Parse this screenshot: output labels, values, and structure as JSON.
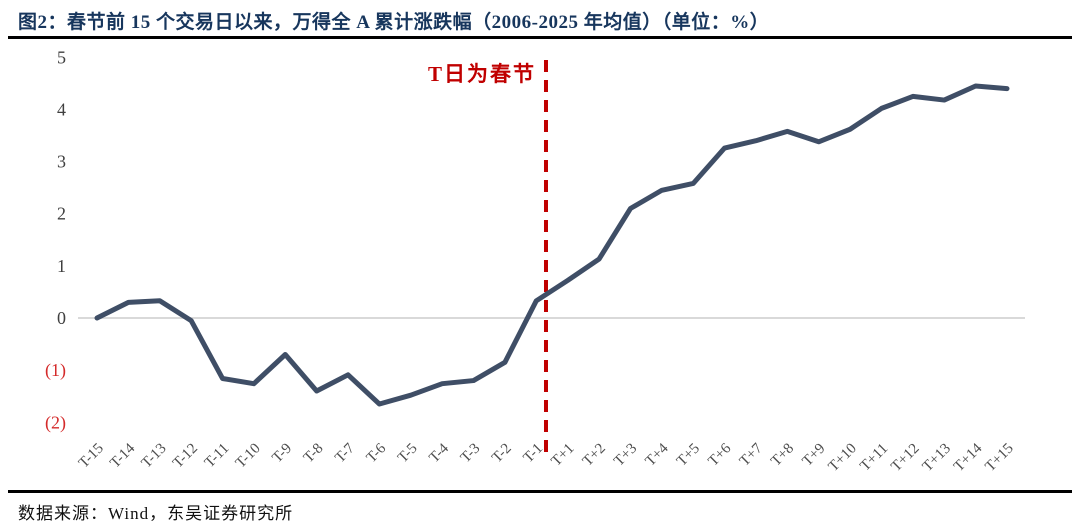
{
  "title": "图2：春节前 15 个交易日以来，万得全 A 累计涨跌幅（2006-2025 年均值）（单位：%）",
  "footer": {
    "source": "数据来源：Wind，东吴证券研究所"
  },
  "colors": {
    "title_text": "#17365D",
    "series_line": "#3F4E66",
    "divider_red": "#C00000",
    "negative_tick_red": "#D42A2A",
    "zero_line_gray": "#D9D9D9",
    "tick_text": "#4D4D4D",
    "rule_black": "#000000"
  },
  "chart_data": {
    "type": "line",
    "title": "春节前15个交易日以来，万得全A累计涨跌幅（2006-2025年均值）",
    "unit": "%",
    "annotation": "T日为春节",
    "categories": [
      "T-15",
      "T-14",
      "T-13",
      "T-12",
      "T-11",
      "T-10",
      "T-9",
      "T-8",
      "T-7",
      "T-6",
      "T-5",
      "T-4",
      "T-3",
      "T-2",
      "T-1",
      "T+1",
      "T+2",
      "T+3",
      "T+4",
      "T+5",
      "T+6",
      "T+7",
      "T+8",
      "T+9",
      "T+10",
      "T+11",
      "T+12",
      "T+13",
      "T+14",
      "T+15"
    ],
    "values": [
      0.0,
      0.3,
      0.33,
      -0.05,
      -1.16,
      -1.26,
      -0.7,
      -1.4,
      -1.09,
      -1.65,
      -1.48,
      -1.26,
      -1.2,
      -0.85,
      0.33,
      0.72,
      1.13,
      2.1,
      2.45,
      2.58,
      3.26,
      3.4,
      3.58,
      3.38,
      3.62,
      4.02,
      4.25,
      4.18,
      4.45,
      4.4
    ],
    "ylim": [
      -2,
      5
    ],
    "yticks": [
      {
        "label": "5",
        "value": 5,
        "negative": false
      },
      {
        "label": "4",
        "value": 4,
        "negative": false
      },
      {
        "label": "3",
        "value": 3,
        "negative": false
      },
      {
        "label": "2",
        "value": 2,
        "negative": false
      },
      {
        "label": "1",
        "value": 1,
        "negative": false
      },
      {
        "label": "0",
        "value": 0,
        "negative": false
      },
      {
        "label": "(1)",
        "value": -1,
        "negative": true
      },
      {
        "label": "(2)",
        "value": -2,
        "negative": true
      }
    ],
    "divider_between": [
      "T-1",
      "T+1"
    ],
    "grid": "zero-line-only",
    "legend": "none"
  }
}
